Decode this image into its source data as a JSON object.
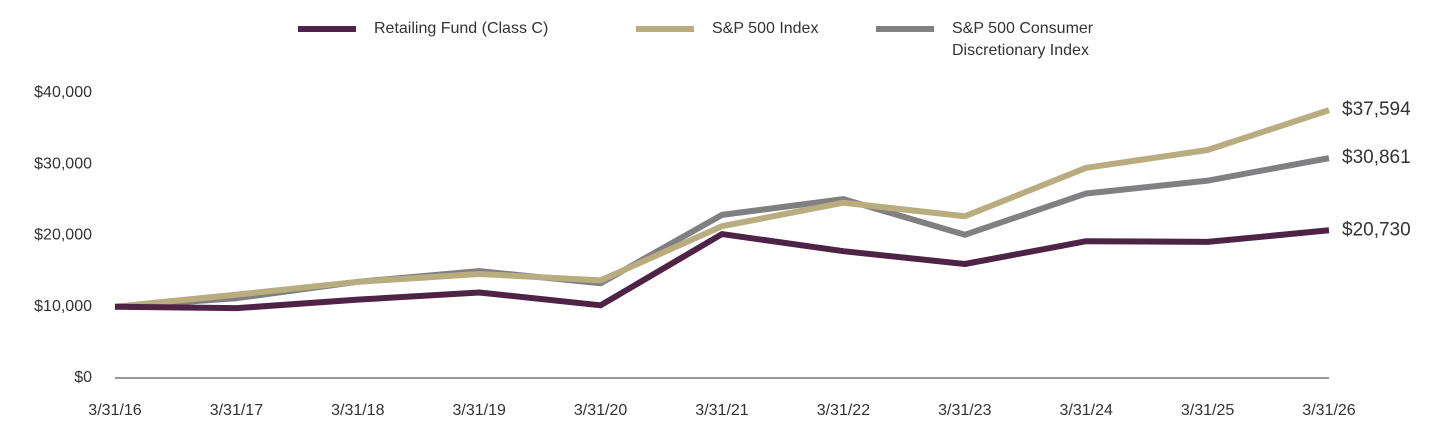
{
  "chart_data": {
    "type": "line",
    "categories": [
      "3/31/16",
      "3/31/17",
      "3/31/18",
      "3/31/19",
      "3/31/20",
      "3/31/21",
      "3/31/22",
      "3/31/23",
      "3/31/24",
      "3/31/25",
      "3/31/26"
    ],
    "series": [
      {
        "name": "Retailing Fund (Class C)",
        "color": "#4f2346",
        "values": [
          10000,
          9800,
          11000,
          12000,
          10200,
          20200,
          17800,
          16000,
          19200,
          19100,
          20730
        ],
        "value_labels": [
          null,
          null,
          null,
          null,
          null,
          null,
          null,
          null,
          null,
          null,
          "$20,730"
        ]
      },
      {
        "name": "S&P 500 Index",
        "color": "#b9ad7f",
        "values": [
          10000,
          11700,
          13500,
          14600,
          13700,
          21300,
          24600,
          22700,
          29500,
          32000,
          37594
        ],
        "value_labels": [
          null,
          null,
          null,
          null,
          null,
          null,
          null,
          null,
          null,
          null,
          "$37,594"
        ]
      },
      {
        "name": "S&P 500 Consumer Discretionary Index",
        "color": "#808083",
        "values": [
          10000,
          11200,
          13500,
          15000,
          13300,
          22900,
          25100,
          20100,
          25900,
          27700,
          30861
        ],
        "value_labels": [
          null,
          null,
          null,
          null,
          null,
          null,
          null,
          null,
          null,
          null,
          "$30,861"
        ]
      }
    ],
    "ylim": [
      0,
      40000
    ],
    "yticks": [
      {
        "value": 0,
        "label": "$0"
      },
      {
        "value": 10000,
        "label": "$10,000"
      },
      {
        "value": 20000,
        "label": "$20,000"
      },
      {
        "value": 30000,
        "label": "$30,000"
      },
      {
        "value": 40000,
        "label": "$40,000"
      }
    ],
    "grid": false
  }
}
